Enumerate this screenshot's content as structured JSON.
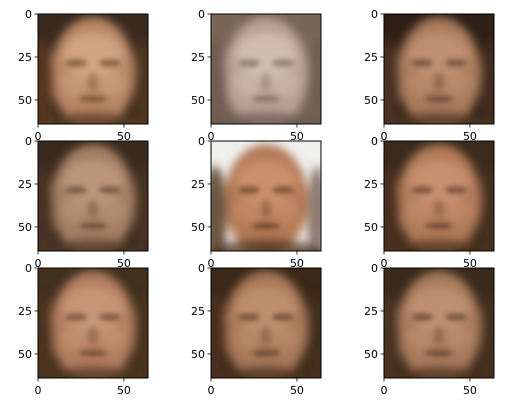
{
  "panels": [
    {
      "id": "face-1",
      "skin": "#b88563",
      "light": "#d8b090",
      "shadow": "#5a3a22",
      "bg": "#3a2a1e"
    },
    {
      "id": "face-2",
      "skin": "#b8a098",
      "light": "#dcc8bc",
      "shadow": "#6e5a50",
      "bg": "#7a6656"
    },
    {
      "id": "face-3",
      "skin": "#a87a5c",
      "light": "#c9987a",
      "shadow": "#503424",
      "bg": "#2e2016"
    },
    {
      "id": "face-4",
      "skin": "#a37e62",
      "light": "#c4a084",
      "shadow": "#4e3626",
      "bg": "#3a2a1e"
    },
    {
      "id": "face-5",
      "skin": "#b27a56",
      "light": "#d49a74",
      "shadow": "#4a2e1a",
      "bg": "#f0f0ee"
    },
    {
      "id": "face-6",
      "skin": "#b07a58",
      "light": "#d09a78",
      "shadow": "#4c301e",
      "bg": "#3c2a1c"
    },
    {
      "id": "face-7",
      "skin": "#b27e5e",
      "light": "#d0a080",
      "shadow": "#50341e",
      "bg": "#40301e"
    },
    {
      "id": "face-8",
      "skin": "#a87858",
      "light": "#c89878",
      "shadow": "#4a301e",
      "bg": "#3a2818"
    },
    {
      "id": "face-9",
      "skin": "#a87a5c",
      "light": "#c89a7c",
      "shadow": "#4c321e",
      "bg": "#3a2a1c"
    }
  ],
  "x_ticks": [
    "0",
    "50"
  ],
  "y_ticks": [
    "0",
    "25",
    "50"
  ]
}
